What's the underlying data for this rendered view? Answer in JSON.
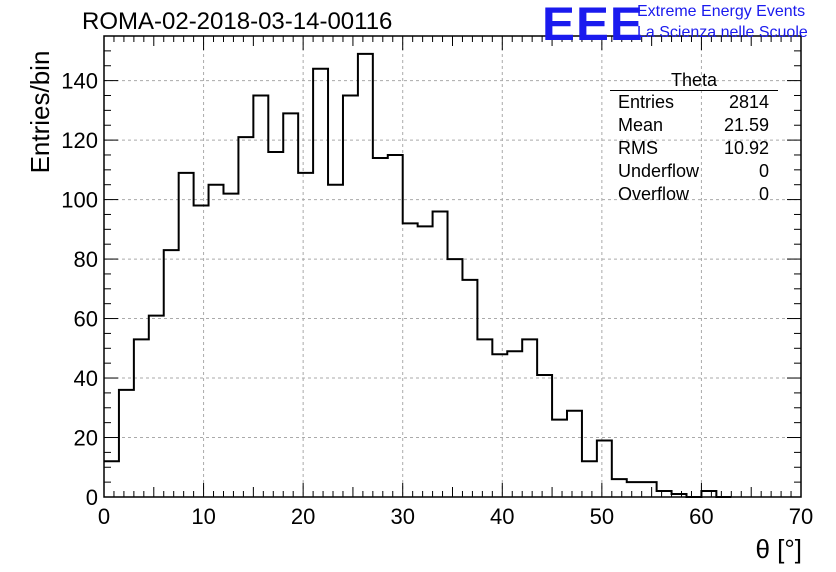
{
  "title": "ROMA-02-2018-03-14-00116",
  "logo": {
    "text": "EEE",
    "line1": "Extreme Energy Events",
    "line2": "La Scienza nelle Scuole",
    "color": "#1a1aee"
  },
  "stats": {
    "title": "Theta",
    "rows": [
      {
        "label": "Entries",
        "value": "2814"
      },
      {
        "label": "Mean",
        "value": "21.59"
      },
      {
        "label": "RMS",
        "value": "10.92"
      },
      {
        "label": "Underflow",
        "value": "0"
      },
      {
        "label": "Overflow",
        "value": "0"
      }
    ]
  },
  "chart_data": {
    "type": "histogram",
    "title": "ROMA-02-2018-03-14-00116",
    "xlabel": "θ [°]",
    "ylabel": "Entries/bin",
    "xlim": [
      0,
      70
    ],
    "ylim": [
      0,
      155
    ],
    "x_ticks": [
      0,
      10,
      20,
      30,
      40,
      50,
      60,
      70
    ],
    "y_ticks": [
      0,
      20,
      40,
      60,
      80,
      100,
      120,
      140
    ],
    "grid": true,
    "bin_width": 1.5,
    "bin_edges_start": 0,
    "values": [
      12,
      36,
      53,
      61,
      83,
      109,
      98,
      105,
      102,
      121,
      135,
      116,
      129,
      109,
      144,
      105,
      135,
      149,
      114,
      115,
      92,
      91,
      96,
      80,
      73,
      53,
      48,
      49,
      53,
      41,
      26,
      29,
      12,
      19,
      6,
      5,
      5,
      2,
      1,
      0,
      2,
      0
    ]
  }
}
